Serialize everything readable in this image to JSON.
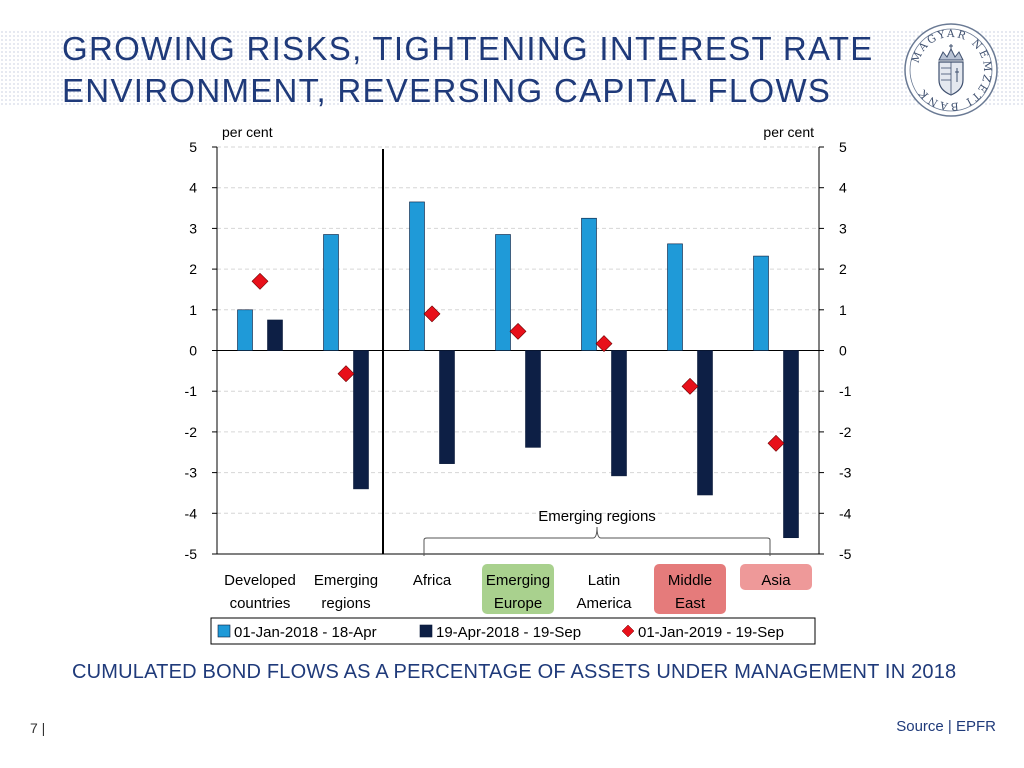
{
  "header": {
    "title_line1": "GROWING RISKS, TIGHTENING INTEREST RATE",
    "title_line2": "ENVIRONMENT, REVERSING CAPITAL FLOWS"
  },
  "logo": {
    "text": "MAGYAR NEMZETI BANK"
  },
  "caption": "CUMULATED BOND FLOWS AS A PERCENTAGE OF ASSETS UNDER MANAGEMENT IN 2018",
  "footer": {
    "page_number": "7 |",
    "source": "Source | EPFR"
  },
  "chart_data": {
    "type": "bar",
    "title": "",
    "ylabel_left": "per cent",
    "ylabel_right": "per cent",
    "ylim": [
      -5,
      5
    ],
    "yticks": [
      5,
      4,
      3,
      2,
      1,
      0,
      -1,
      -2,
      -3,
      -4,
      -5
    ],
    "grid": true,
    "categories": [
      {
        "lines": [
          "Developed",
          "countries"
        ],
        "highlight": ""
      },
      {
        "lines": [
          "Emerging",
          "regions"
        ],
        "highlight": ""
      },
      {
        "lines": [
          "Africa"
        ],
        "highlight": ""
      },
      {
        "lines": [
          "Emerging",
          "Europe"
        ],
        "highlight": "#a9d18e"
      },
      {
        "lines": [
          "Latin",
          "America"
        ],
        "highlight": ""
      },
      {
        "lines": [
          "Middle",
          "East"
        ],
        "highlight": "#e57b7b"
      },
      {
        "lines": [
          "Asia"
        ],
        "highlight": "#ee9999"
      }
    ],
    "series": [
      {
        "name": "01-Jan-2018 - 18-Apr",
        "kind": "bar",
        "color": "#1f9ad8",
        "values": [
          1.0,
          2.85,
          3.65,
          2.85,
          3.25,
          2.62,
          2.32
        ]
      },
      {
        "name": "19-Apr-2018 - 19-Sep",
        "kind": "bar",
        "color": "#0d1f45",
        "values": [
          0.75,
          -3.4,
          -2.78,
          -2.38,
          -3.08,
          -3.55,
          -4.6
        ]
      },
      {
        "name": "01-Jan-2019 - 19-Sep",
        "kind": "marker",
        "color": "#e8101a",
        "values": [
          1.7,
          -0.57,
          0.9,
          0.47,
          0.17,
          -0.88,
          -2.28
        ]
      }
    ],
    "annotations": {
      "brace_label": "Emerging regions",
      "separator_after_category": 1
    },
    "legend_position": "bottom"
  }
}
